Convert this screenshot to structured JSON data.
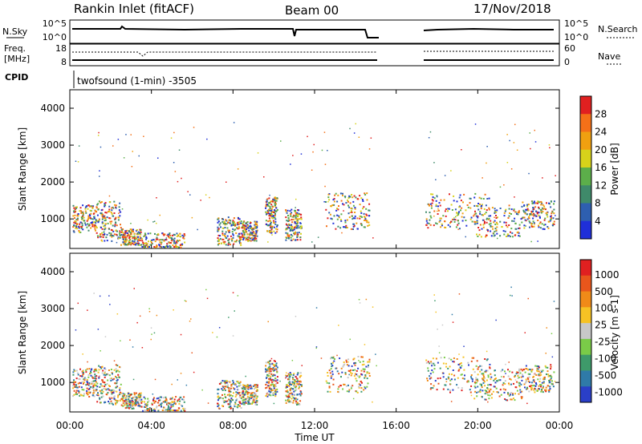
{
  "header": {
    "station": "Rankin Inlet (fitACF)",
    "beam": "Beam 00",
    "date": "17/Nov/2018"
  },
  "top_panels": {
    "nsky_label": "N.Sky",
    "nsearch_label": "N.Search",
    "nsky_ticks": [
      "10^5",
      "10^0"
    ],
    "nsearch_ticks": [
      "10^5",
      "10^0"
    ],
    "freq_label": "Freq.",
    "freq_unit": "[MHz]",
    "freq_ticks": [
      "18",
      "8"
    ],
    "nave_label": "Nave",
    "nave_ticks": [
      "60",
      "0"
    ],
    "cpid_label": "CPID",
    "cpid_text": "twofsound (1-min) -3505"
  },
  "chart_data": [
    {
      "type": "heatmap",
      "name": "power",
      "ylabel": "Slant Range [km]",
      "yticks": [
        "1000",
        "2000",
        "3000",
        "4000"
      ],
      "colorbar_label": "Power [dB]",
      "colorbar_ticks": [
        "4",
        "8",
        "12",
        "16",
        "20",
        "24",
        "28"
      ],
      "colorbar_colors": [
        "#1f2fd8",
        "#2e5fb0",
        "#3f8a6a",
        "#5cae4a",
        "#d7d21a",
        "#f0a010",
        "#f47018",
        "#e02020"
      ]
    },
    {
      "type": "heatmap",
      "name": "velocity",
      "ylabel": "Slant Range [km]",
      "yticks": [
        "1000",
        "2000",
        "3000",
        "4000"
      ],
      "colorbar_label": "Velocity [m s-1]",
      "colorbar_ticks": [
        "1000",
        "500",
        "100",
        "25",
        "-25",
        "-100",
        "-500",
        "-1000"
      ],
      "colorbar_colors": [
        "#2a3fc8",
        "#2f7aa8",
        "#3e9a6a",
        "#7acb48",
        "#c8c8c8",
        "#f6c224",
        "#f08a18",
        "#e8561c",
        "#e02020"
      ]
    }
  ],
  "xaxis": {
    "label": "Time UT",
    "ticks": [
      "00:00",
      "04:00",
      "08:00",
      "12:00",
      "16:00",
      "20:00",
      "00:00"
    ]
  }
}
